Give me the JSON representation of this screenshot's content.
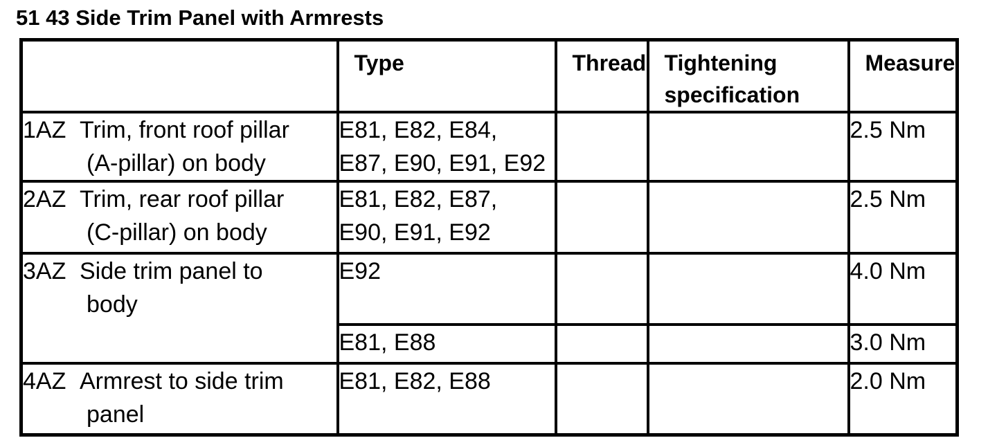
{
  "title": "51 43 Side Trim Panel with Armrests",
  "colors": {
    "text": "#000000",
    "background": "#ffffff",
    "border": "#000000"
  },
  "table": {
    "header": {
      "item": "",
      "type": "Type",
      "thread": "Thread",
      "tightening": "Tightening specification",
      "measure": "Measure"
    },
    "rows": [
      {
        "code": "1AZ",
        "description": "Trim, front roof pillar\n(A-pillar) on body",
        "type": "E81, E82, E84,\nE87, E90, E91, E92",
        "thread": "",
        "tightening": "",
        "measure": "2.5 Nm"
      },
      {
        "code": "2AZ",
        "description": "Trim, rear roof pillar\n(C-pillar) on body",
        "type": "E81, E82, E87,\nE90, E91, E92",
        "thread": "",
        "tightening": "",
        "measure": "2.5 Nm"
      },
      {
        "code": "3AZ",
        "description": "Side trim panel to\nbody",
        "type": "E92",
        "thread": "",
        "tightening": "",
        "measure": "4.0 Nm"
      },
      {
        "code": "",
        "description": "",
        "type": "E81, E88",
        "thread": "",
        "tightening": "",
        "measure": "3.0 Nm"
      },
      {
        "code": "4AZ",
        "description": "Armrest to side trim\npanel",
        "type": "E81, E82, E88",
        "thread": "",
        "tightening": "",
        "measure": "2.0 Nm"
      }
    ]
  }
}
